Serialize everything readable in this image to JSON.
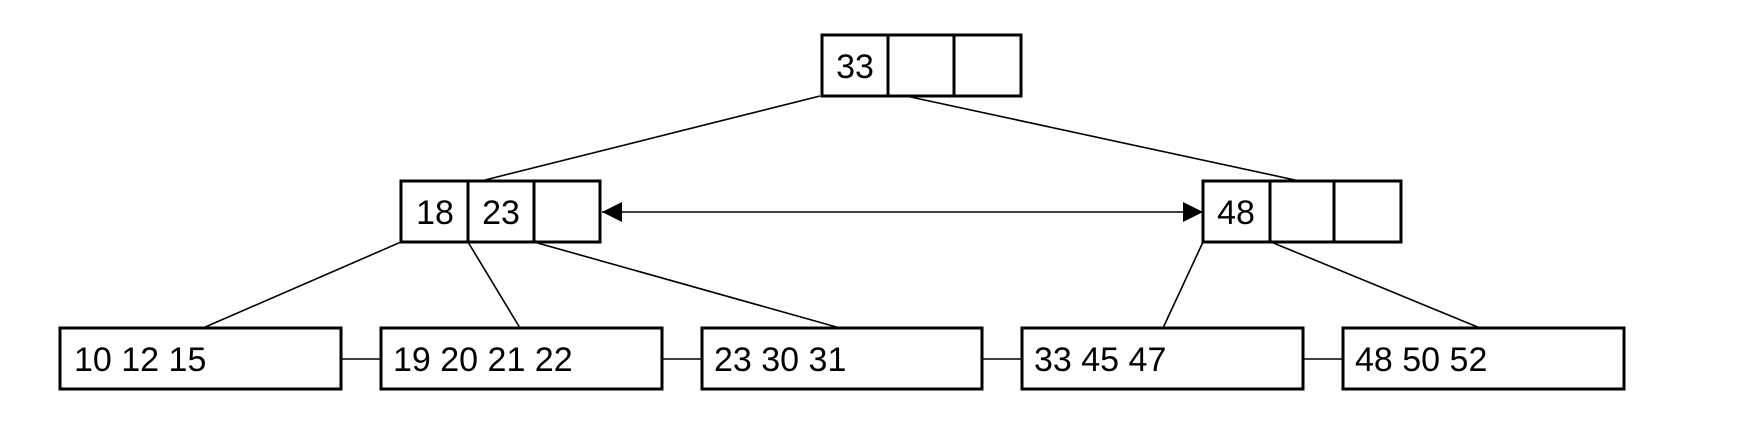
{
  "tree": {
    "root": {
      "keys": [
        "33",
        "",
        ""
      ]
    },
    "internal": [
      {
        "keys": [
          "18",
          "23",
          ""
        ]
      },
      {
        "keys": [
          "48",
          "",
          ""
        ]
      }
    ],
    "leaves": [
      {
        "label": "10 12 15"
      },
      {
        "label": "19 20 21 22"
      },
      {
        "label": "23 30 31"
      },
      {
        "label": "33 45 47"
      },
      {
        "label": "48 50 52"
      }
    ]
  }
}
